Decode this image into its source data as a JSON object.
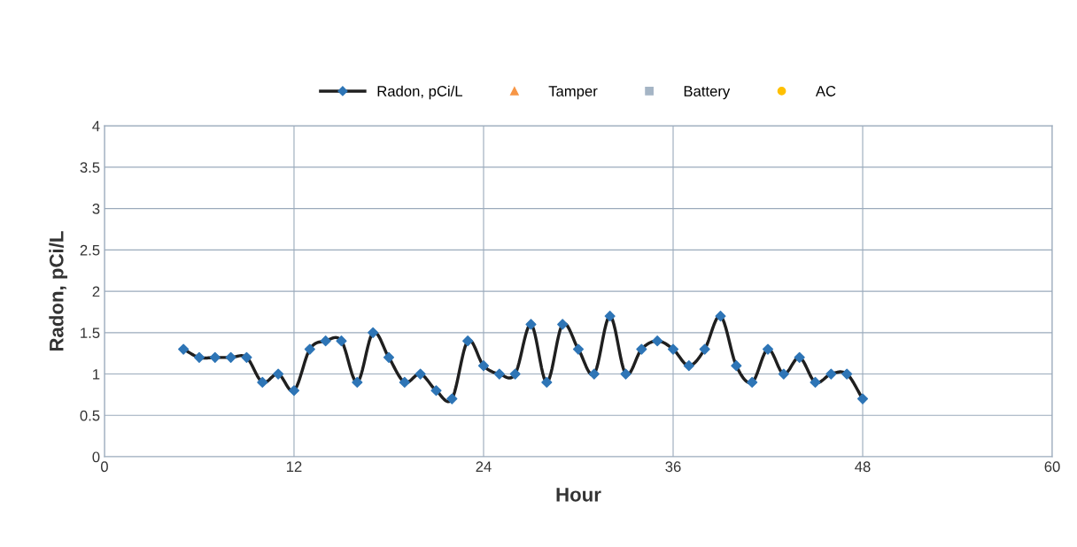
{
  "chart_data": {
    "type": "line",
    "xlabel": "Hour",
    "ylabel": "Radon, pCi/L",
    "x": [
      5,
      6,
      7,
      8,
      9,
      10,
      11,
      12,
      13,
      14,
      15,
      16,
      17,
      18,
      19,
      20,
      21,
      22,
      23,
      24,
      25,
      26,
      27,
      28,
      29,
      30,
      31,
      32,
      33,
      34,
      35,
      36,
      37,
      38,
      39,
      40,
      41,
      42,
      43,
      44,
      45,
      46,
      47,
      48
    ],
    "series": [
      {
        "name": "Radon, pCi/L",
        "color": "#1f1f1f",
        "colors": [
          "#2e75b6",
          "#2e75b6",
          "#2e75b6",
          "#2e75b6",
          "#2e75b6",
          "#2e75b6",
          "#2e75b6",
          "#2e75b6",
          "#2e75b6",
          "#2e75b6",
          "#2e75b6",
          "#2e75b6",
          "#2e75b6",
          "#2e75b6",
          "#2e75b6",
          "#2e75b6",
          "#2e75b6",
          "#2e75b6",
          "#2e75b6",
          "#2e75b6",
          "#2e75b6",
          "#2e75b6",
          "#2e75b6",
          "#2e75b6",
          "#2e75b6",
          "#2e75b6",
          "#2e75b6",
          "#2e75b6",
          "#2e75b6",
          "#2e75b6",
          "#2e75b6",
          "#2e75b6",
          "#2e75b6",
          "#2e75b6",
          "#2e75b6",
          "#2e75b6",
          "#2e75b6",
          "#2e75b6",
          "#2e75b6",
          "#2e75b6",
          "#2e75b6",
          "#2e75b6",
          "#2e75b6",
          "#2e75b6"
        ],
        "marker": "diamond",
        "values": [
          1.3,
          1.2,
          1.2,
          1.2,
          1.2,
          0.9,
          1.0,
          0.8,
          1.3,
          1.4,
          1.4,
          0.9,
          1.5,
          1.2,
          0.9,
          1.0,
          0.8,
          0.7,
          1.4,
          1.1,
          1.0,
          1.0,
          1.6,
          0.9,
          1.6,
          1.3,
          1.0,
          1.7,
          1.0,
          1.3,
          1.4,
          1.3,
          1.1,
          1.3,
          1.7,
          1.1,
          0.9,
          1.3,
          1.0,
          1.2,
          0.9,
          1.0,
          1.0,
          0.7
        ]
      },
      {
        "name": "Tamper",
        "type": "scatter",
        "color": "#f79646",
        "marker": "triangle",
        "values": [
          null,
          null,
          null,
          null,
          null,
          null,
          null,
          null,
          null,
          null,
          null,
          null,
          null,
          null,
          null,
          null,
          null,
          null,
          null,
          null,
          null,
          null,
          null,
          null,
          null,
          null,
          null,
          null,
          null,
          null,
          null,
          null,
          null,
          null,
          null,
          null,
          null,
          null,
          null,
          null,
          null,
          null,
          null,
          null
        ]
      },
      {
        "name": "Battery",
        "type": "scatter",
        "color": "#a5b5c5",
        "marker": "square",
        "values": [
          null,
          null,
          null,
          null,
          null,
          null,
          null,
          null,
          null,
          null,
          null,
          null,
          null,
          null,
          null,
          null,
          null,
          null,
          null,
          null,
          null,
          null,
          null,
          null,
          null,
          null,
          null,
          null,
          null,
          null,
          null,
          null,
          null,
          null,
          null,
          null,
          null,
          null,
          null,
          null,
          null,
          null,
          null,
          null
        ]
      },
      {
        "name": "AC",
        "type": "scatter",
        "color": "#ffc000",
        "marker": "circle",
        "values": [
          null,
          null,
          null,
          null,
          null,
          null,
          null,
          null,
          null,
          null,
          null,
          null,
          null,
          null,
          null,
          null,
          null,
          null,
          null,
          null,
          null,
          null,
          null,
          null,
          null,
          null,
          null,
          null,
          null,
          null,
          null,
          null,
          null,
          null,
          null,
          null,
          null,
          null,
          null,
          null,
          null,
          null,
          null,
          null
        ]
      }
    ],
    "xlim": [
      0,
      60
    ],
    "xticks": [
      0,
      12,
      24,
      36,
      48,
      60
    ],
    "ylim": [
      0,
      4
    ],
    "yticks": [
      0,
      0.5,
      1,
      1.5,
      2,
      2.5,
      3,
      3.5,
      4
    ],
    "grid": true,
    "legend": "top"
  }
}
